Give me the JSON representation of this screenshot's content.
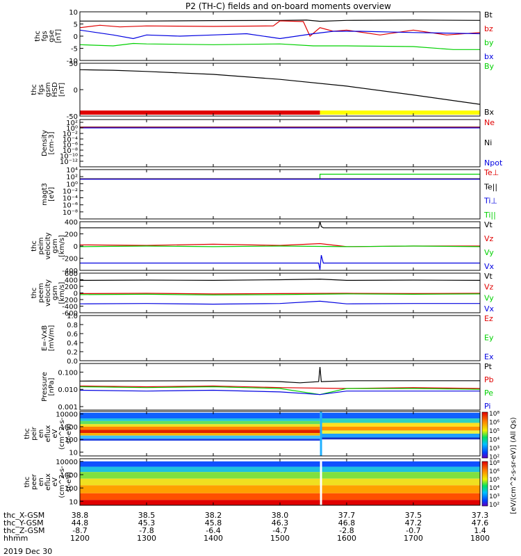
{
  "title": "P2 (TH-C) fields and on-board moments overview",
  "date_label": "2019 Dec 30",
  "colors": {
    "black": "#000000",
    "red": "#e00000",
    "green": "#00d000",
    "blue": "#0000e0",
    "yellow": "#ffff00"
  },
  "chart_data": [
    {
      "type": "line",
      "ylabel_lines": [
        "thc",
        "fgs",
        "gse",
        "[nT]"
      ],
      "ylim": [
        -10,
        10
      ],
      "yticks": [
        "10",
        "5",
        "0",
        "-5",
        "-10"
      ],
      "legend": [
        {
          "text": "Bt",
          "color": "black"
        },
        {
          "text": "bz",
          "color": "red"
        },
        {
          "text": "by",
          "color": "green"
        },
        {
          "text": "bx",
          "color": "blue"
        }
      ],
      "series": [
        {
          "name": "Bt",
          "color": "black",
          "x": [
            0,
            1,
            2,
            3,
            3.4,
            3.6,
            4,
            5,
            6
          ],
          "y": [
            6.2,
            6.2,
            6.4,
            6.5,
            6.6,
            6.1,
            6.5,
            6.6,
            6.5
          ]
        },
        {
          "name": "bz",
          "color": "red",
          "x": [
            0,
            0.3,
            0.6,
            1,
            2,
            2.9,
            3.0,
            3.35,
            3.45,
            3.6,
            3.8,
            4.0,
            4.5,
            5.0,
            5.5,
            6
          ],
          "y": [
            3.5,
            4.5,
            3.8,
            4.2,
            4.0,
            4.2,
            6.3,
            6.0,
            0,
            3.5,
            2.0,
            2.5,
            0.5,
            2.5,
            0.5,
            1.5
          ]
        },
        {
          "name": "by",
          "color": "green",
          "x": [
            0,
            0.5,
            0.8,
            1,
            2,
            3,
            3.5,
            4,
            5,
            5.6,
            6
          ],
          "y": [
            -3.5,
            -4.0,
            -3.0,
            -3.2,
            -3.5,
            -3.2,
            -4.0,
            -4.0,
            -4.3,
            -5.5,
            -5.5
          ]
        },
        {
          "name": "bx",
          "color": "blue",
          "x": [
            0,
            0.25,
            0.5,
            0.8,
            1,
            1.5,
            2,
            2.5,
            3,
            3.5,
            3.8,
            4.2,
            5,
            6
          ],
          "y": [
            2.5,
            1.5,
            0.5,
            -1.0,
            0.5,
            0.0,
            0.5,
            1.0,
            -1.0,
            1.0,
            2.0,
            2.0,
            1.5,
            1.0
          ]
        }
      ]
    },
    {
      "type": "line",
      "ylabel_lines": [
        "thc",
        "fgs",
        "gsm",
        "HSD",
        "[nT]"
      ],
      "ylim": [
        -90,
        90
      ],
      "yticks": [
        "50",
        "0",
        "-50"
      ],
      "legend": [
        {
          "text": "By",
          "color": "green"
        },
        {
          "text": "Bx",
          "color": "black"
        }
      ],
      "series": [
        {
          "name": "Bx",
          "color": "black",
          "x": [
            0,
            0.5,
            1,
            2,
            3,
            4,
            5,
            6
          ],
          "y": [
            68,
            66,
            62,
            52,
            35,
            12,
            -18,
            -50
          ]
        }
      ],
      "bars": [
        {
          "color": "red",
          "from": 0,
          "to": 3.6
        },
        {
          "color": "yellow",
          "from": 3.6,
          "to": 6
        }
      ]
    },
    {
      "type": "line",
      "ylog": true,
      "ylim": [
        -14,
        3
      ],
      "ylabel_lines": [
        "Density",
        "[cm-3]"
      ],
      "yticks": [
        "10²",
        "10⁰",
        "10⁻²",
        "10⁻⁴",
        "10⁻⁶",
        "10⁻⁸",
        "10⁻¹⁰",
        "10⁻¹²"
      ],
      "legend": [
        {
          "text": "Ne",
          "color": "red"
        },
        {
          "text": "Ni",
          "color": "black"
        },
        {
          "text": "Npot",
          "color": "blue"
        }
      ],
      "series": [
        {
          "name": "Ni",
          "color": "black",
          "x": [
            0,
            6
          ],
          "y": [
            0.3,
            0.3
          ]
        },
        {
          "name": "Ne",
          "color": "red",
          "x": [
            0,
            6
          ],
          "y": [
            0.2,
            0.2
          ]
        },
        {
          "name": "Npot",
          "color": "blue",
          "x": [
            0,
            6
          ],
          "y": [
            0.0,
            0.0
          ]
        }
      ]
    },
    {
      "type": "line",
      "ylog": true,
      "ylim": [
        -10,
        4
      ],
      "ylabel_lines": [
        "magt3",
        "[eV]"
      ],
      "yticks": [
        "10⁴",
        "10²",
        "10⁰",
        "10⁻²",
        "10⁻⁴",
        "10⁻⁶",
        "10⁻⁸"
      ],
      "legend": [
        {
          "text": "Te⊥",
          "color": "red"
        },
        {
          "text": "Te||",
          "color": "black"
        },
        {
          "text": "Ti⊥",
          "color": "blue"
        },
        {
          "text": "Ti||",
          "color": "green"
        }
      ],
      "series": [
        {
          "name": "Ti||",
          "color": "green",
          "x": [
            0,
            3.6,
            3.6,
            6
          ],
          "y": [
            1.3,
            1.3,
            2.7,
            2.7
          ]
        },
        {
          "name": "Te||",
          "color": "black",
          "x": [
            0,
            6
          ],
          "y": [
            1.4,
            1.4
          ]
        },
        {
          "name": "Te⊥",
          "color": "red",
          "x": [
            0,
            6
          ],
          "y": [
            1.3,
            1.3
          ]
        },
        {
          "name": "Ti⊥",
          "color": "blue",
          "x": [
            0,
            6
          ],
          "y": [
            1.25,
            1.25
          ]
        }
      ]
    },
    {
      "type": "line",
      "ylabel_lines": [
        "thc",
        "peim",
        "velocity",
        "gsm",
        "[km/s]"
      ],
      "ylim": [
        -400,
        400
      ],
      "yticks": [
        "400",
        "200",
        "0",
        "-200",
        "-400"
      ],
      "legend": [
        {
          "text": "Vt",
          "color": "black"
        },
        {
          "text": "Vz",
          "color": "red"
        },
        {
          "text": "Vy",
          "color": "green"
        },
        {
          "text": "Vx",
          "color": "blue"
        }
      ],
      "series": [
        {
          "name": "Vt",
          "color": "black",
          "x": [
            0,
            3.58,
            3.6,
            3.62,
            3.65,
            6
          ],
          "y": [
            300,
            300,
            400,
            320,
            300,
            300
          ]
        },
        {
          "name": "Vz",
          "color": "red",
          "x": [
            0,
            1,
            2,
            3,
            3.6,
            4,
            5,
            6
          ],
          "y": [
            20,
            10,
            30,
            10,
            40,
            -10,
            0,
            0
          ]
        },
        {
          "name": "Vy",
          "color": "green",
          "x": [
            0,
            1,
            2,
            3,
            4,
            5,
            6
          ],
          "y": [
            -10,
            0,
            -10,
            0,
            -10,
            0,
            -10
          ]
        },
        {
          "name": "Vx",
          "color": "blue",
          "x": [
            0,
            3.58,
            3.6,
            3.62,
            3.65,
            6
          ],
          "y": [
            -280,
            -280,
            -390,
            -150,
            -280,
            -280
          ]
        }
      ]
    },
    {
      "type": "line",
      "ylabel_lines": [
        "thc",
        "peem",
        "velocity",
        "gsm",
        "[km/s]"
      ],
      "ylim": [
        -600,
        600
      ],
      "yticks": [
        "600",
        "400",
        "200",
        "0",
        "-200",
        "-400",
        "-600"
      ],
      "legend": [
        {
          "text": "Vt",
          "color": "black"
        },
        {
          "text": "Vz",
          "color": "red"
        },
        {
          "text": "Vy",
          "color": "green"
        },
        {
          "text": "Vx",
          "color": "blue"
        }
      ],
      "series": [
        {
          "name": "Vt",
          "color": "black",
          "x": [
            0,
            1,
            2,
            3,
            3.6,
            4,
            5,
            6
          ],
          "y": [
            380,
            390,
            380,
            400,
            420,
            380,
            390,
            380
          ]
        },
        {
          "name": "Vz",
          "color": "red",
          "x": [
            0,
            1,
            2,
            3,
            4,
            5,
            6
          ],
          "y": [
            -20,
            -10,
            -30,
            -20,
            -10,
            -20,
            -10
          ]
        },
        {
          "name": "Vy",
          "color": "green",
          "x": [
            0,
            1,
            2,
            3,
            4,
            5,
            6
          ],
          "y": [
            -50,
            -40,
            -60,
            -50,
            -30,
            -40,
            -30
          ]
        },
        {
          "name": "Vx",
          "color": "blue",
          "x": [
            0,
            1,
            2,
            3,
            3.6,
            4,
            5,
            6
          ],
          "y": [
            -330,
            -320,
            -340,
            -320,
            -250,
            -330,
            -320,
            -320
          ]
        }
      ]
    },
    {
      "type": "line",
      "ylabel_lines": [
        "E=-VxB",
        "[mV/m]"
      ],
      "ylim": [
        0,
        1
      ],
      "yticks": [
        "1.0",
        "0.8",
        "0.6",
        "0.4",
        "0.2",
        "0.0"
      ],
      "legend": [
        {
          "text": "Ez",
          "color": "red"
        },
        {
          "text": "Ey",
          "color": "green"
        },
        {
          "text": "Ex",
          "color": "blue"
        }
      ],
      "series": []
    },
    {
      "type": "line",
      "ylog": true,
      "ylim": [
        -3.2,
        -0.5
      ],
      "ylabel_lines": [
        "Pressure",
        "[nPa]"
      ],
      "yticks": [
        "0.100",
        "0.010",
        "0.001"
      ],
      "ytick_vals": [
        -1,
        -2,
        -3
      ],
      "legend": [
        {
          "text": "Pt",
          "color": "black"
        },
        {
          "text": "Pb",
          "color": "red"
        },
        {
          "text": "Pe",
          "color": "green"
        },
        {
          "text": "Pi",
          "color": "blue"
        }
      ],
      "series": [
        {
          "name": "Pt",
          "color": "black",
          "x": [
            0,
            2,
            3.0,
            3.3,
            3.58,
            3.6,
            3.62,
            4,
            6
          ],
          "y": [
            -1.52,
            -1.5,
            -1.55,
            -1.62,
            -1.55,
            -0.7,
            -1.55,
            -1.5,
            -1.5
          ]
        },
        {
          "name": "Pb",
          "color": "red",
          "x": [
            0,
            1,
            2,
            3,
            4,
            5,
            6
          ],
          "y": [
            -1.8,
            -1.85,
            -1.8,
            -1.9,
            -1.95,
            -1.9,
            -1.95
          ]
        },
        {
          "name": "Pe",
          "color": "green",
          "x": [
            0,
            1,
            2,
            3,
            3.6,
            4,
            5,
            6
          ],
          "y": [
            -1.85,
            -1.9,
            -1.85,
            -1.95,
            -2.3,
            -1.95,
            -1.95,
            -2.0
          ]
        },
        {
          "name": "Pi",
          "color": "blue",
          "x": [
            0,
            1,
            2,
            3,
            3.6,
            4,
            5,
            6
          ],
          "y": [
            -2.05,
            -2.1,
            -2.05,
            -2.15,
            -2.3,
            -2.1,
            -2.1,
            -2.1
          ]
        }
      ]
    },
    {
      "type": "heatmap",
      "ylabel_lines": [
        "thc",
        "peir",
        "en",
        "eflux",
        "eV",
        "(cm^2-s-",
        "sr-eV)"
      ],
      "ylog": true,
      "ylim": [
        0.7,
        4.2
      ],
      "yticks": [
        "10000",
        "1000",
        "100",
        "10"
      ],
      "ytick_vals": [
        4,
        3,
        2,
        1
      ]
    },
    {
      "type": "heatmap",
      "ylabel_lines": [
        "thc",
        "peer",
        "en",
        "eflux",
        "eV",
        "(cm^2-s-",
        "sr-eV)"
      ],
      "ylog": true,
      "ylim": [
        0.7,
        4.2
      ],
      "yticks": [
        "10000",
        "1000",
        "100",
        "10"
      ],
      "ytick_vals": [
        4,
        3,
        2,
        1
      ]
    }
  ],
  "colorbar": {
    "label": "[eV/(cm^2-s-sr-eV)] (All Qs)",
    "ticks_top": [
      "10⁸",
      "10⁶",
      "10⁵",
      "10⁴",
      "10³",
      "10²"
    ],
    "ticks_bottom": [
      "10⁸",
      "10⁶",
      "10⁵",
      "10⁴",
      "10³",
      "10²"
    ]
  },
  "x_axis": {
    "row_labels": [
      "thc_X-GSM",
      "thc_Y-GSM",
      "thc_Z-GSM",
      "hhmm"
    ],
    "columns": [
      [
        "38.8",
        "44.8",
        "-8.7",
        "1200"
      ],
      [
        "38.5",
        "45.3",
        "-7.8",
        "1300"
      ],
      [
        "38.2",
        "45.8",
        "-6.4",
        "1400"
      ],
      [
        "38.0",
        "46.3",
        "-4.7",
        "1500"
      ],
      [
        "37.7",
        "46.8",
        "-2.8",
        "1600"
      ],
      [
        "37.5",
        "47.2",
        "-0.7",
        "1700"
      ],
      [
        "37.3",
        "47.6",
        "1.4",
        "1800"
      ]
    ]
  }
}
